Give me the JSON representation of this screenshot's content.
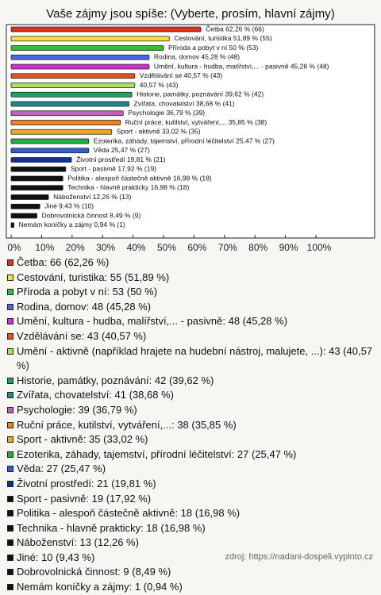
{
  "chart_data": {
    "type": "bar",
    "orientation": "horizontal",
    "title": "Vaše zájmy jsou spíše: (Vyberte, prosím, hlavní zájmy)",
    "categories": [
      "Četba",
      "Cestování, turistika",
      "Příroda a pobyt v ní",
      "Rodina, domov",
      "Umění, kultura - hudba, malířství,... - pasivně",
      "Vzdělávání se",
      "Umění - aktivně (například hrajete na hudební nástroj, malujete, ...)",
      "Historie, památky, poznávání",
      "Zvířata, chovatelství",
      "Psychologie",
      "Ruční práce, kutilství, vytváření,...",
      "Sport - aktivně",
      "Ezoterika, záhady, tajemství, přírodní léčitelství",
      "Věda",
      "Životní prostředí",
      "Sport - pasivně",
      "Politika - alespoň částečně aktivně",
      "Technika - hlavně prakticky",
      "Náboženství",
      "Jiné",
      "Dobrovolnická činnost",
      "Nemám koníčky a zájmy"
    ],
    "values": [
      62.26,
      51.89,
      50,
      45.28,
      45.28,
      40.57,
      40.57,
      39.62,
      38.68,
      36.79,
      35.85,
      33.02,
      25.47,
      25.47,
      19.81,
      17.92,
      16.98,
      16.98,
      12.26,
      9.43,
      8.49,
      0.94
    ],
    "value_labels": [
      "Četba 62,26 % (66)",
      "Cestování, turistika 51,89 % (55)",
      "Příroda a pobyt v ní 50 % (53)",
      "Rodina, domov 45,28 % (48)",
      "Umění, kultura - hudba, malířství,... - pasivně 45,28 % (48)",
      "Vzdělávání se 40,57 % (43)",
      "40,57 % (43)",
      "Historie, památky, poznávání 39,62 % (42)",
      "Zvířata, chovatelství 38,68 % (41)",
      "Psychologie 36,79 % (39)",
      "Ruční práce, kutilství, vytváření,... 35,85 % (38)",
      "Sport - aktivně 33,02 % (35)",
      "Ezoterika, záhady, tajemství, přírodní léčitelství 25,47 % (27)",
      "Věda 25,47 % (27)",
      "Životní prostředí 19,81 % (21)",
      "Sport - pasivně 17,92 % (19)",
      "Politika - alespoň částečně aktivně 16,98 % (18)",
      "Technika - hlavně prakticky 16,98 % (18)",
      "Náboženství 12,26 % (13)",
      "Jiné 9,43 % (10)",
      "Dobrovolnická činnost 8,49 % (9)",
      "Nemám koníčky a zájmy 0,94 % (1)"
    ],
    "colors": [
      "#e03020",
      "#f2e040",
      "#30c030",
      "#4a66e0",
      "#d030d0",
      "#e8501e",
      "#a8e060",
      "#20a060",
      "#208888",
      "#c060c0",
      "#f08020",
      "#e8a820",
      "#20b040",
      "#3060d0",
      "#1030a0",
      "#111111",
      "#111111",
      "#111111",
      "#111111",
      "#111111",
      "#111111",
      "#111111"
    ],
    "legend": [
      "Četba: 66 (62,26 %)",
      "Cestování, turistika: 55 (51,89 %)",
      "Příroda a pobyt v ní: 53 (50 %)",
      "Rodina, domov: 48 (45,28 %)",
      "Umění, kultura - hudba, malířství,... - pasivně: 48 (45,28 %)",
      "Vzdělávání se: 43 (40,57 %)",
      "Umění - aktivně (například hrajete na hudební nástroj, malujete, ...): 43 (40,57 %)",
      "Historie, památky, poznávání: 42 (39,62 %)",
      "Zvířata, chovatelství: 41 (38,68 %)",
      "Psychologie: 39 (36,79 %)",
      "Ruční práce, kutilství, vytváření,...: 38 (35,85 %)",
      "Sport - aktivně: 35 (33,02 %)",
      "Ezoterika, záhady, tajemství, přírodní léčitelství: 27 (25,47 %)",
      "Věda: 27 (25,47 %)",
      "Životní prostředí: 21 (19,81 %)",
      "Sport - pasivně: 19 (17,92 %)",
      "Politika - alespoň částečně aktivně: 18 (16,98 %)",
      "Technika - hlavně prakticky: 18 (16,98 %)",
      "Náboženství: 13 (12,26 %)",
      "Jiné: 10 (9,43 %)",
      "Dobrovolnická činnost: 9 (8,49 %)",
      "Nemám koníčky a zájmy: 1 (0,94 %)"
    ],
    "xlim": [
      0,
      100
    ],
    "xticks": [
      {
        "value": 0,
        "label": "0%"
      },
      {
        "value": 10,
        "label": "10%"
      },
      {
        "value": 20,
        "label": "20%"
      },
      {
        "value": 30,
        "label": "30%"
      },
      {
        "value": 40,
        "label": "40%"
      },
      {
        "value": 50,
        "label": "50%"
      },
      {
        "value": 60,
        "label": "60%"
      },
      {
        "value": 70,
        "label": "70%"
      },
      {
        "value": 80,
        "label": "80%"
      },
      {
        "value": 90,
        "label": "90%"
      },
      {
        "value": 100,
        "label": "100%"
      }
    ],
    "grid": false
  },
  "source": "zdroj: https://nadani-dospeli.vyplnto.cz"
}
